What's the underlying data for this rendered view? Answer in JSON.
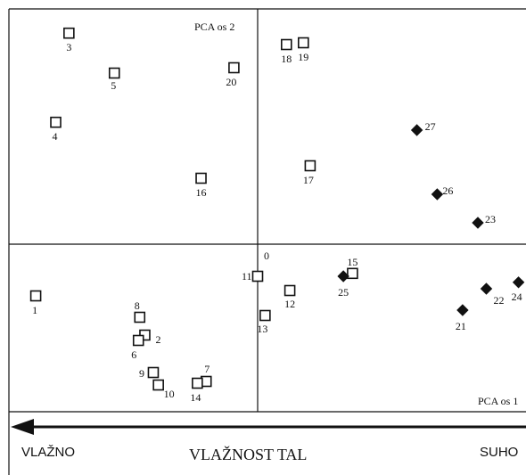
{
  "chart_data": {
    "type": "scatter",
    "title": "",
    "xlabel": "PCA os 1",
    "ylabel": "PCA os 2",
    "origin_label": "0",
    "bottom_axis": {
      "left_label": "VLAŽNO",
      "title": "VLAŽNOST TAL",
      "right_label": "SUHO"
    },
    "marker_styles": {
      "square": "open-square",
      "diamond": "filled-diamond"
    },
    "points": [
      {
        "id": "1",
        "x": -6.55,
        "y": -1.45,
        "marker": "square"
      },
      {
        "id": "2",
        "x": -3.33,
        "y": -2.55,
        "marker": "square"
      },
      {
        "id": "3",
        "x": -5.57,
        "y": 5.92,
        "marker": "square"
      },
      {
        "id": "4",
        "x": -5.96,
        "y": 3.42,
        "marker": "square"
      },
      {
        "id": "5",
        "x": -4.23,
        "y": 4.8,
        "marker": "square"
      },
      {
        "id": "6",
        "x": -3.52,
        "y": -2.7,
        "marker": "square"
      },
      {
        "id": "7",
        "x": -1.52,
        "y": -3.85,
        "marker": "square"
      },
      {
        "id": "8",
        "x": -3.48,
        "y": -2.05,
        "marker": "square"
      },
      {
        "id": "9",
        "x": -3.08,
        "y": -3.6,
        "marker": "square"
      },
      {
        "id": "10",
        "x": -2.93,
        "y": -3.95,
        "marker": "square"
      },
      {
        "id": "11",
        "x": 0.0,
        "y": -0.9,
        "marker": "square"
      },
      {
        "id": "12",
        "x": 0.95,
        "y": -1.3,
        "marker": "square"
      },
      {
        "id": "13",
        "x": 0.22,
        "y": -2.0,
        "marker": "square"
      },
      {
        "id": "14",
        "x": -1.78,
        "y": -3.9,
        "marker": "square"
      },
      {
        "id": "15",
        "x": 2.8,
        "y": -0.82,
        "marker": "square"
      },
      {
        "id": "16",
        "x": -1.67,
        "y": 1.85,
        "marker": "square"
      },
      {
        "id": "17",
        "x": 1.55,
        "y": 2.2,
        "marker": "square"
      },
      {
        "id": "18",
        "x": 0.85,
        "y": 5.6,
        "marker": "square"
      },
      {
        "id": "19",
        "x": 1.35,
        "y": 5.65,
        "marker": "square"
      },
      {
        "id": "20",
        "x": -0.7,
        "y": 4.95,
        "marker": "square"
      },
      {
        "id": "21",
        "x": 6.05,
        "y": -1.85,
        "marker": "diamond"
      },
      {
        "id": "22",
        "x": 6.75,
        "y": -1.25,
        "marker": "diamond"
      },
      {
        "id": "23",
        "x": 6.5,
        "y": 0.6,
        "marker": "diamond"
      },
      {
        "id": "24",
        "x": 7.7,
        "y": -1.07,
        "marker": "diamond"
      },
      {
        "id": "25",
        "x": 2.53,
        "y": -0.9,
        "marker": "diamond"
      },
      {
        "id": "26",
        "x": 5.3,
        "y": 1.4,
        "marker": "diamond"
      },
      {
        "id": "27",
        "x": 4.7,
        "y": 3.2,
        "marker": "diamond"
      }
    ]
  }
}
